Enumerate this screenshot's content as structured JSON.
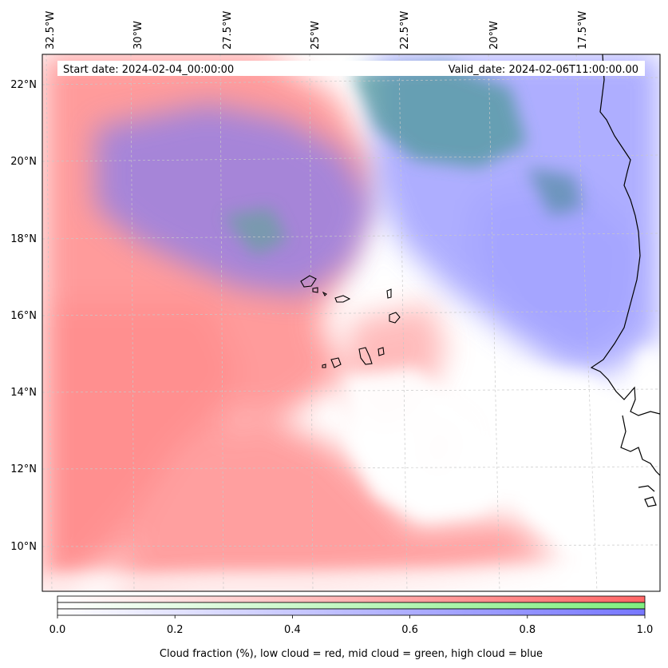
{
  "map": {
    "start_date_label": "Start date: 2024-02-04_00:00:00",
    "valid_date_label": "Valid_date: 2024-02-06T11:00:00.00",
    "lon_ticks": [
      "32.5°W",
      "30°W",
      "27.5°W",
      "25°W",
      "22.5°W",
      "20°W",
      "17.5°W"
    ],
    "lat_ticks": [
      "22°N",
      "20°N",
      "18°N",
      "16°N",
      "14°N",
      "12°N",
      "10°N"
    ],
    "cloud_colors": {
      "low": "#ff7777",
      "mid": "#88ee88",
      "high": "#8888ff"
    }
  },
  "colorbar": {
    "ticks": [
      "0.0",
      "0.2",
      "0.4",
      "0.6",
      "0.8",
      "1.0"
    ],
    "tick_values": [
      0.0,
      0.2,
      0.4,
      0.6,
      0.8,
      1.0
    ],
    "title": "Cloud fraction (%), low cloud = red, mid cloud = green, high cloud = blue",
    "range": [
      0.0,
      1.0
    ]
  }
}
